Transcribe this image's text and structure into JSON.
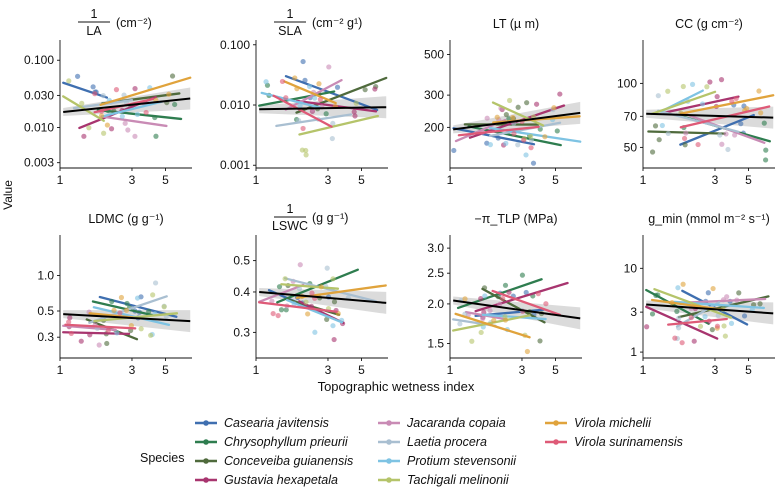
{
  "colors": {
    "Casearia javitensis": "#3f6fb0",
    "Chrysophyllum prieurii": "#2e7d4f",
    "Conceveiba guianensis": "#4f6a3c",
    "Gustavia hexapetala": "#a8356f",
    "Jacaranda copaia": "#c98bb5",
    "Laetia procera": "#a9bfd1",
    "Protium stevensonii": "#7ec3e3",
    "Tachigali melinonii": "#b5c46a",
    "Virola michelii": "#e0a33c",
    "Virola surinamensis": "#de5a77"
  },
  "labels": {
    "ylabel": "Value",
    "xlabel": "Topographic wetness index",
    "legend_title": "Species"
  },
  "chart_data": [
    {
      "type": "scatter",
      "panel": "LA",
      "title_frac_num": "1",
      "title_frac_den": "LA",
      "title_unit": "(cm⁻²)",
      "yscale": "log",
      "ylim": [
        0.0025,
        0.2
      ],
      "yticks": [
        0.003,
        0.01,
        0.03,
        0.1
      ],
      "yticklabels": [
        "0.003",
        "0.010",
        "0.030",
        "0.100"
      ],
      "xlim": [
        1,
        7.5
      ],
      "xticks": [
        1,
        3,
        5
      ],
      "overall_trend": [
        0.017,
        0.027
      ]
    },
    {
      "type": "scatter",
      "panel": "SLA",
      "title_frac_num": "1",
      "title_frac_den": "SLA",
      "title_unit": "(cm⁻² g¹)",
      "yscale": "log",
      "ylim": [
        0.0009,
        0.12
      ],
      "yticks": [
        0.001,
        0.01,
        0.1
      ],
      "yticklabels": [
        "0.001",
        "0.010",
        "0.100"
      ],
      "xlim": [
        1,
        7.5
      ],
      "xticks": [
        1,
        3,
        5
      ],
      "overall_trend": [
        0.0085,
        0.0092
      ]
    },
    {
      "type": "scatter",
      "panel": "LT",
      "title": "LT (µ m)",
      "yscale": "log",
      "ylim": [
        120,
        600
      ],
      "yticks": [
        200,
        300,
        500
      ],
      "yticklabels": [
        "200",
        "300",
        "500"
      ],
      "xlim": [
        1,
        7.5
      ],
      "xticks": [
        1,
        3,
        5
      ],
      "overall_trend": [
        195,
        240
      ]
    },
    {
      "type": "scatter",
      "panel": "CC",
      "title": "CC (g cm⁻²)",
      "yscale": "log",
      "ylim": [
        40,
        160
      ],
      "yticks": [
        50,
        70,
        100
      ],
      "yticklabels": [
        "50",
        "70",
        "100"
      ],
      "xlim": [
        1,
        7.5
      ],
      "xticks": [
        1,
        3,
        5
      ],
      "overall_trend": [
        72,
        69
      ]
    },
    {
      "type": "scatter",
      "panel": "LDMC",
      "title": "LDMC (g g⁻¹)",
      "yscale": "log",
      "ylim": [
        0.2,
        2.2
      ],
      "yticks": [
        0.3,
        0.5,
        1.0
      ],
      "yticklabels": [
        "0.3",
        "0.5",
        "1.0"
      ],
      "xlim": [
        1,
        7.5
      ],
      "xticks": [
        1,
        3,
        5
      ],
      "overall_trend": [
        0.47,
        0.41
      ]
    },
    {
      "type": "scatter",
      "panel": "LSWC",
      "title_frac_num": "1",
      "title_frac_den": "LSWC",
      "title_unit": "(g g⁻¹)",
      "yscale": "log",
      "ylim": [
        0.25,
        0.6
      ],
      "yticks": [
        0.3,
        0.4,
        0.5
      ],
      "yticklabels": [
        "0.3",
        "0.4",
        "0.5"
      ],
      "xlim": [
        1,
        7.5
      ],
      "xticks": [
        1,
        3,
        5
      ],
      "overall_trend": [
        0.4,
        0.37
      ]
    },
    {
      "type": "scatter",
      "panel": "TLP",
      "title": "−π_TLP (MPa)",
      "yscale": "log",
      "ylim": [
        1.35,
        3.3
      ],
      "yticks": [
        1.5,
        2.0,
        2.5,
        3.0
      ],
      "yticklabels": [
        "1.5",
        "2.0",
        "2.5",
        "3.0"
      ],
      "xlim": [
        1,
        7.5
      ],
      "xticks": [
        1,
        3,
        5
      ],
      "overall_trend": [
        2.05,
        1.8
      ]
    },
    {
      "type": "scatter",
      "panel": "gmin",
      "title": "g_min (mmol m⁻² s⁻¹)",
      "yscale": "log",
      "ylim": [
        0.85,
        25
      ],
      "yticks": [
        1,
        3,
        10
      ],
      "yticklabels": [
        "1",
        "3",
        "10"
      ],
      "xlim": [
        1,
        7.5
      ],
      "xticks": [
        1,
        3,
        5
      ],
      "overall_trend": [
        3.7,
        2.9
      ]
    }
  ],
  "legend": [
    "Casearia javitensis",
    "Chrysophyllum prieurii",
    "Conceveiba guianensis",
    "Gustavia hexapetala",
    "Jacaranda copaia",
    "Laetia procera",
    "Protium stevensonii",
    "Tachigali melinonii",
    "Virola michelii",
    "Virola surinamensis"
  ],
  "seed": 7
}
